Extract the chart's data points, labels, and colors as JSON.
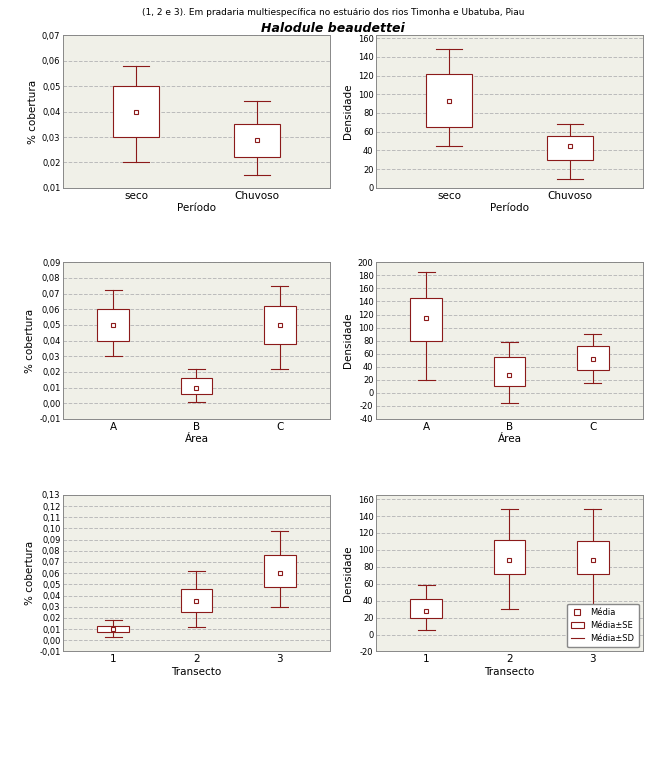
{
  "title_main": "Halodule beaudettei",
  "subtitle": "(1, 2 e 3). Em pradaria multiespecífica no estuário dos rios Timonha e Ubatuba, Piau",
  "box_color": "#8B1A1A",
  "mean_marker_color": "#8B1A1A",
  "bg_color": "#ffffff",
  "plot_bg": "#f0f0e8",
  "grid_color": "#bbbbbb",
  "plots": [
    {
      "ylabel": "% cobertura",
      "xlabel": "Período",
      "categories": [
        "seco",
        "Chuvoso"
      ],
      "ylim": [
        0.01,
        0.07
      ],
      "yticks": [
        0.01,
        0.02,
        0.03,
        0.04,
        0.05,
        0.06,
        0.07
      ],
      "ytick_labels": [
        "0,01",
        "0,02",
        "0,03",
        "0,04",
        "0,05",
        "0,06",
        "0,07"
      ],
      "boxes": [
        {
          "mean": 0.04,
          "q1": 0.03,
          "q3": 0.05,
          "whisker_low": 0.02,
          "whisker_high": 0.058
        },
        {
          "mean": 0.029,
          "q1": 0.022,
          "q3": 0.035,
          "whisker_low": 0.015,
          "whisker_high": 0.044
        }
      ]
    },
    {
      "ylabel": "Densidade",
      "xlabel": "Período",
      "categories": [
        "seco",
        "Chuvoso"
      ],
      "ylim": [
        0,
        163
      ],
      "yticks": [
        0,
        20,
        40,
        60,
        80,
        100,
        120,
        140,
        160
      ],
      "ytick_labels": [
        "0",
        "20",
        "40",
        "60",
        "80",
        "100",
        "120",
        "140",
        "160"
      ],
      "boxes": [
        {
          "mean": 93,
          "q1": 65,
          "q3": 122,
          "whisker_low": 45,
          "whisker_high": 148
        },
        {
          "mean": 45,
          "q1": 30,
          "q3": 55,
          "whisker_low": 10,
          "whisker_high": 68
        }
      ]
    },
    {
      "ylabel": "% cobertura",
      "xlabel": "Área",
      "categories": [
        "A",
        "B",
        "C"
      ],
      "ylim": [
        -0.01,
        0.09
      ],
      "yticks": [
        -0.01,
        0.0,
        0.01,
        0.02,
        0.03,
        0.04,
        0.05,
        0.06,
        0.07,
        0.08,
        0.09
      ],
      "ytick_labels": [
        "-0,01",
        "0,00",
        "0,01",
        "0,02",
        "0,03",
        "0,04",
        "0,05",
        "0,06",
        "0,07",
        "0,08",
        "0,09"
      ],
      "boxes": [
        {
          "mean": 0.05,
          "q1": 0.04,
          "q3": 0.06,
          "whisker_low": 0.03,
          "whisker_high": 0.072
        },
        {
          "mean": 0.01,
          "q1": 0.006,
          "q3": 0.016,
          "whisker_low": 0.001,
          "whisker_high": 0.022
        },
        {
          "mean": 0.05,
          "q1": 0.038,
          "q3": 0.062,
          "whisker_low": 0.022,
          "whisker_high": 0.075
        }
      ]
    },
    {
      "ylabel": "Densidade",
      "xlabel": "Área",
      "categories": [
        "A",
        "B",
        "C"
      ],
      "ylim": [
        -40,
        200
      ],
      "yticks": [
        -40,
        -20,
        0,
        20,
        40,
        60,
        80,
        100,
        120,
        140,
        160,
        180,
        200
      ],
      "ytick_labels": [
        "-40",
        "-20",
        "0",
        "20",
        "40",
        "60",
        "80",
        "100",
        "120",
        "140",
        "160",
        "180",
        "200"
      ],
      "boxes": [
        {
          "mean": 115,
          "q1": 80,
          "q3": 145,
          "whisker_low": 20,
          "whisker_high": 185
        },
        {
          "mean": 28,
          "q1": 10,
          "q3": 55,
          "whisker_low": -15,
          "whisker_high": 78
        },
        {
          "mean": 52,
          "q1": 35,
          "q3": 72,
          "whisker_low": 15,
          "whisker_high": 90
        }
      ]
    },
    {
      "ylabel": "% cobertura",
      "xlabel": "Transecto",
      "categories": [
        "1",
        "2",
        "3"
      ],
      "ylim": [
        -0.01,
        0.13
      ],
      "yticks": [
        -0.01,
        0.0,
        0.01,
        0.02,
        0.03,
        0.04,
        0.05,
        0.06,
        0.07,
        0.08,
        0.09,
        0.1,
        0.11,
        0.12,
        0.13
      ],
      "ytick_labels": [
        "-0,01",
        "0,00",
        "0,01",
        "0,02",
        "0,03",
        "0,04",
        "0,05",
        "0,06",
        "0,07",
        "0,08",
        "0,09",
        "0,10",
        "0,11",
        "0,12",
        "0,13"
      ],
      "boxes": [
        {
          "mean": 0.01,
          "q1": 0.007,
          "q3": 0.013,
          "whisker_low": 0.003,
          "whisker_high": 0.018
        },
        {
          "mean": 0.035,
          "q1": 0.025,
          "q3": 0.046,
          "whisker_low": 0.012,
          "whisker_high": 0.062
        },
        {
          "mean": 0.06,
          "q1": 0.048,
          "q3": 0.076,
          "whisker_low": 0.03,
          "whisker_high": 0.098
        }
      ]
    },
    {
      "ylabel": "Densidade",
      "xlabel": "Transecto",
      "categories": [
        "1",
        "2",
        "3"
      ],
      "ylim": [
        -20,
        165
      ],
      "yticks": [
        -20,
        0,
        20,
        40,
        60,
        80,
        100,
        120,
        140,
        160
      ],
      "ytick_labels": [
        "-20",
        "0",
        "20",
        "40",
        "60",
        "80",
        "100",
        "120",
        "140",
        "160"
      ],
      "boxes": [
        {
          "mean": 28,
          "q1": 20,
          "q3": 42,
          "whisker_low": 5,
          "whisker_high": 58
        },
        {
          "mean": 88,
          "q1": 72,
          "q3": 112,
          "whisker_low": 30,
          "whisker_high": 148
        },
        {
          "mean": 88,
          "q1": 72,
          "q3": 110,
          "whisker_low": 28,
          "whisker_high": 148
        }
      ]
    }
  ],
  "legend": {
    "mean_label": "Média",
    "se_label": "Média±SE",
    "sd_label": "Média±SD"
  }
}
